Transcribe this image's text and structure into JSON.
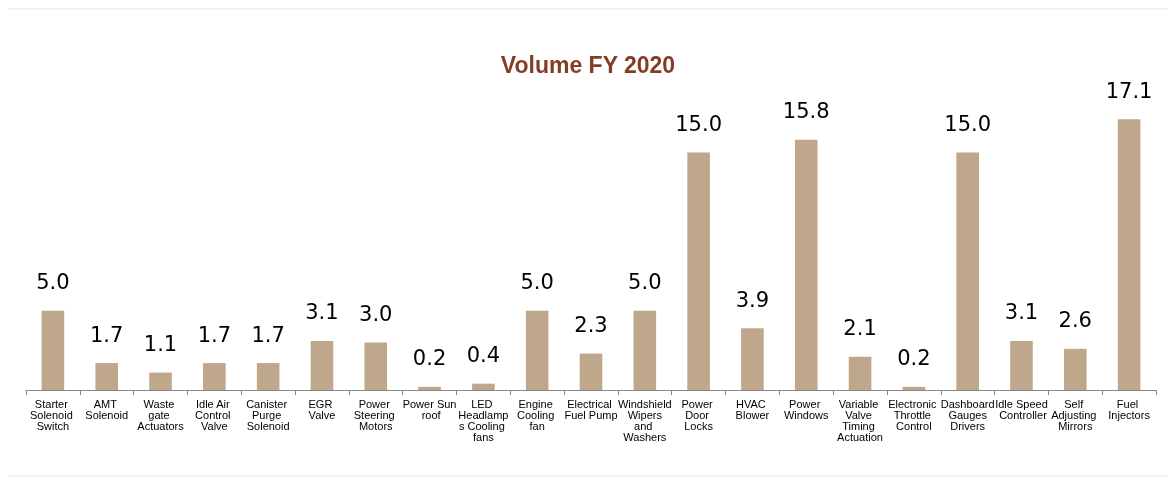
{
  "chart_data": {
    "type": "bar",
    "title": "Volume FY 2020",
    "categories": [
      "Starter Solenoid Switch",
      "AMT Solenoid",
      "Waste gate Actuators",
      "Idle Air Control Valve",
      "Canister Purge Solenoid",
      "EGR Valve",
      "Power Steering Motors",
      "Power Sun roof",
      "LED Headlamps Cooling fans",
      "Engine Cooling fan",
      "Electrical Fuel Pump",
      "Windshield Wipers and Washers",
      "Power Door Locks",
      "HVAC Blower",
      "Power Windows",
      "Variable Valve Timing Actuation",
      "Electronic Throttle Control",
      "Dashboard Gauges Drivers",
      "Idle Speed Controller",
      "Self Adjusting Mirrors",
      "Fuel Injectors"
    ],
    "values": [
      5.0,
      1.7,
      1.1,
      1.7,
      1.7,
      3.1,
      3.0,
      0.2,
      0.4,
      5.0,
      2.3,
      5.0,
      15.0,
      3.9,
      15.8,
      2.1,
      0.2,
      15.0,
      3.1,
      2.6,
      17.1
    ],
    "value_labels": [
      "5.0",
      "1.7",
      "1.1",
      "1.7",
      "1.7",
      "3.1",
      "3.0",
      "0.2",
      "0.4",
      "5.0",
      "2.3",
      "5.0",
      "15.0",
      "3.9",
      "15.8",
      "2.1",
      "0.2",
      "15.0",
      "3.1",
      "2.6",
      "17.1"
    ],
    "color": "#bfa78b",
    "grid": false
  }
}
